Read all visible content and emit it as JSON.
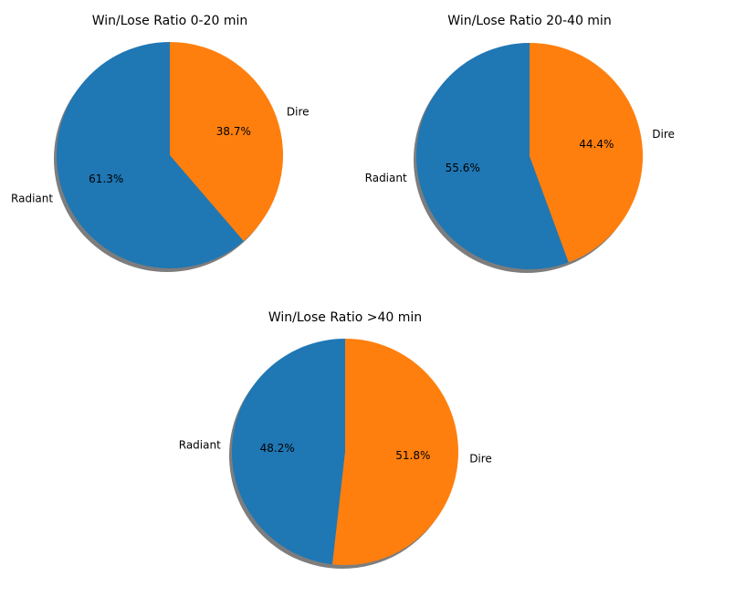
{
  "chart_data": [
    {
      "type": "pie",
      "title": "Win/Lose Ratio 0-20 min",
      "categories": [
        "Radiant",
        "Dire"
      ],
      "values": [
        61.3,
        38.7
      ],
      "pct_labels": [
        "61.3%",
        "38.7%"
      ],
      "colors": [
        "#1f77b4",
        "#ff7f0e"
      ],
      "shadow": true,
      "start_angle": 90,
      "direction": "counterclockwise"
    },
    {
      "type": "pie",
      "title": "Win/Lose Ratio 20-40 min",
      "categories": [
        "Radiant",
        "Dire"
      ],
      "values": [
        55.6,
        44.4
      ],
      "pct_labels": [
        "55.6%",
        "44.4%"
      ],
      "colors": [
        "#1f77b4",
        "#ff7f0e"
      ],
      "shadow": true,
      "start_angle": 90,
      "direction": "counterclockwise"
    },
    {
      "type": "pie",
      "title": "Win/Lose Ratio >40 min",
      "categories": [
        "Radiant",
        "Dire"
      ],
      "values": [
        48.2,
        51.8
      ],
      "pct_labels": [
        "48.2%",
        "51.8%"
      ],
      "colors": [
        "#1f77b4",
        "#ff7f0e"
      ],
      "shadow": true,
      "start_angle": 90,
      "direction": "counterclockwise"
    }
  ]
}
